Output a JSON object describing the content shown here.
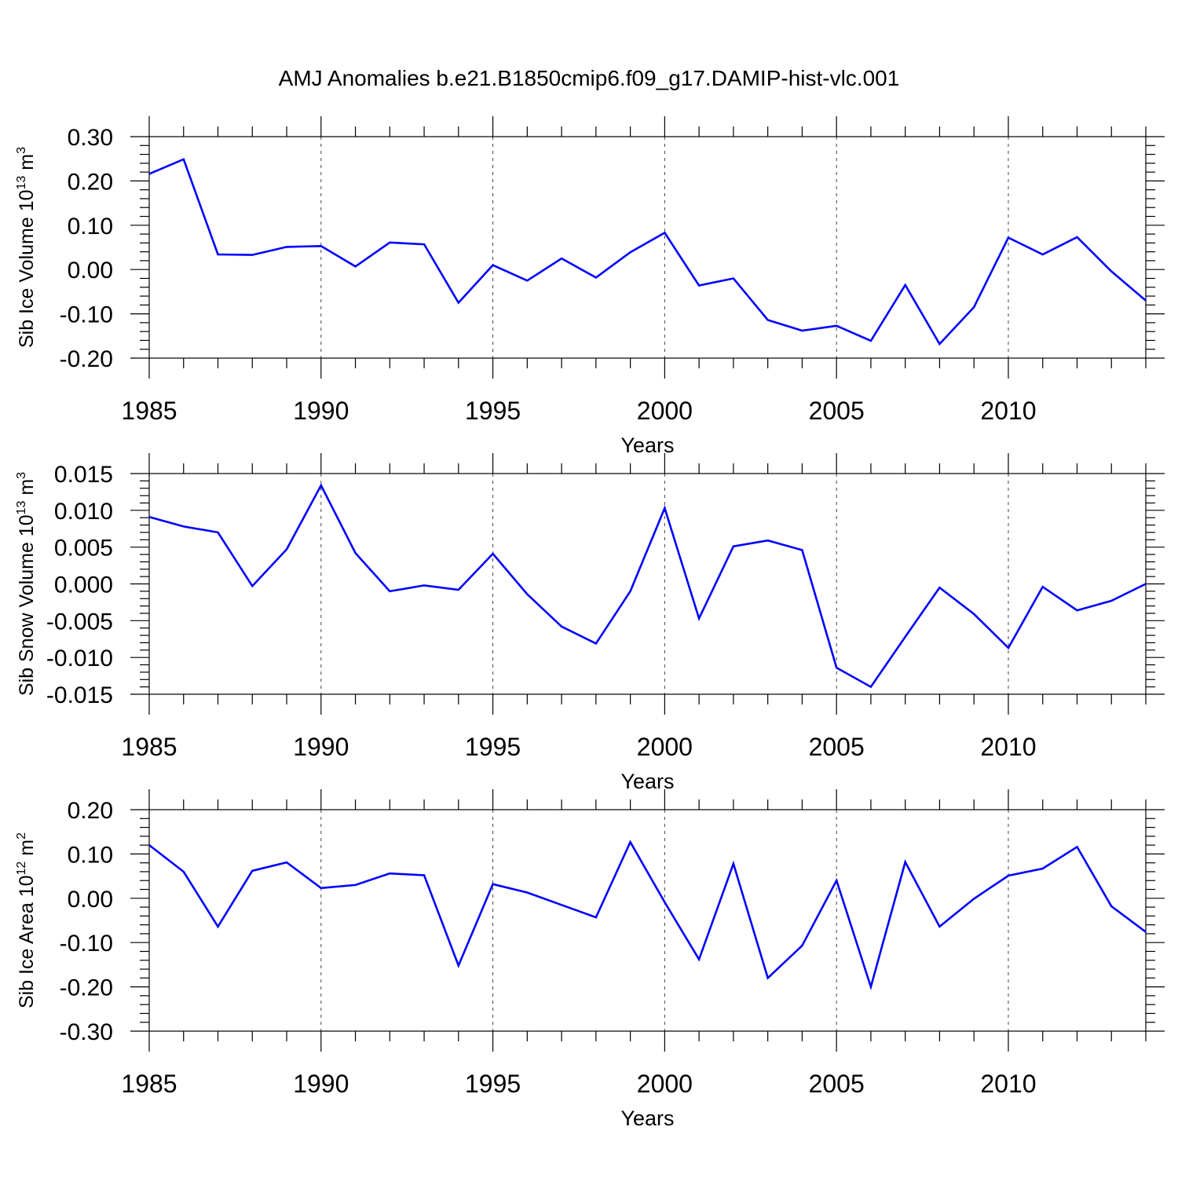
{
  "title": "AMJ Anomalies b.e21.B1850cmip6.f09_g17.DAMIP-hist-vlc.001",
  "colors": {
    "line": "#0000ff",
    "axis": "#000000",
    "grid": "#444444"
  },
  "chart_data": [
    {
      "type": "line",
      "ylabel": "Sib Ice Volume 10",
      "ylabel_exp": "13",
      "ylabel_unit": " m",
      "ylabel_unit_exp": "3",
      "xlabel": "Years",
      "xlim": [
        1985,
        2014
      ],
      "ylim": [
        -0.2,
        0.3
      ],
      "yticks": [
        -0.2,
        -0.1,
        0.0,
        0.1,
        0.2,
        0.3
      ],
      "ytick_labels": [
        "-0.20",
        "-0.10",
        "0.00",
        "0.10",
        "0.20",
        "0.30"
      ],
      "xticks": [
        1985,
        1990,
        1995,
        2000,
        2005,
        2010
      ],
      "xtick_labels": [
        "1985",
        "1990",
        "1995",
        "2000",
        "2005",
        "2010"
      ],
      "grid_x": [
        1990,
        1995,
        2000,
        2005,
        2010
      ],
      "x": [
        1985,
        1986,
        1987,
        1988,
        1989,
        1990,
        1991,
        1992,
        1993,
        1994,
        1995,
        1996,
        1997,
        1998,
        1999,
        2000,
        2001,
        2002,
        2003,
        2004,
        2005,
        2006,
        2007,
        2008,
        2009,
        2010,
        2011,
        2012,
        2013,
        2014
      ],
      "values": [
        0.216,
        0.249,
        0.034,
        0.033,
        0.051,
        0.053,
        0.007,
        0.061,
        0.057,
        -0.075,
        0.01,
        -0.025,
        0.025,
        -0.018,
        0.039,
        0.083,
        -0.036,
        -0.02,
        -0.114,
        -0.138,
        -0.127,
        -0.161,
        -0.035,
        -0.168,
        -0.085,
        0.072,
        0.034,
        0.073,
        -0.004,
        -0.07
      ]
    },
    {
      "type": "line",
      "ylabel": "Sib Snow Volume 10",
      "ylabel_exp": "13",
      "ylabel_unit": " m",
      "ylabel_unit_exp": "3",
      "xlabel": "Years",
      "xlim": [
        1985,
        2014
      ],
      "ylim": [
        -0.015,
        0.015
      ],
      "yticks": [
        -0.015,
        -0.01,
        -0.005,
        0.0,
        0.005,
        0.01,
        0.015
      ],
      "ytick_labels": [
        "-0.015",
        "-0.010",
        "-0.005",
        "0.000",
        "0.005",
        "0.010",
        "0.015"
      ],
      "xticks": [
        1985,
        1990,
        1995,
        2000,
        2005,
        2010
      ],
      "xtick_labels": [
        "1985",
        "1990",
        "1995",
        "2000",
        "2005",
        "2010"
      ],
      "grid_x": [
        1990,
        1995,
        2000,
        2005,
        2010
      ],
      "x": [
        1985,
        1986,
        1987,
        1988,
        1989,
        1990,
        1991,
        1992,
        1993,
        1994,
        1995,
        1996,
        1997,
        1998,
        1999,
        2000,
        2001,
        2002,
        2003,
        2004,
        2005,
        2006,
        2007,
        2008,
        2009,
        2010,
        2011,
        2012,
        2013,
        2014
      ],
      "values": [
        0.0091,
        0.0078,
        0.007,
        -0.0003,
        0.0047,
        0.0134,
        0.0042,
        -0.001,
        -0.0002,
        -0.0008,
        0.0041,
        -0.0014,
        -0.0058,
        -0.0081,
        -0.001,
        0.0103,
        -0.0047,
        0.0051,
        0.0059,
        0.0046,
        -0.0114,
        -0.014,
        -0.0072,
        -0.0005,
        -0.0041,
        -0.0087,
        -0.0004,
        -0.0036,
        -0.0023,
        0.0
      ]
    },
    {
      "type": "line",
      "ylabel": "Sib Ice Area 10",
      "ylabel_exp": "12",
      "ylabel_unit": " m",
      "ylabel_unit_exp": "2",
      "xlabel": "Years",
      "xlim": [
        1985,
        2014
      ],
      "ylim": [
        -0.3,
        0.2
      ],
      "yticks": [
        -0.3,
        -0.2,
        -0.1,
        0.0,
        0.1,
        0.2
      ],
      "ytick_labels": [
        "-0.30",
        "-0.20",
        "-0.10",
        "0.00",
        "0.10",
        "0.20"
      ],
      "xticks": [
        1985,
        1990,
        1995,
        2000,
        2005,
        2010
      ],
      "xtick_labels": [
        "1985",
        "1990",
        "1995",
        "2000",
        "2005",
        "2010"
      ],
      "grid_x": [
        1990,
        1995,
        2000,
        2005,
        2010
      ],
      "x": [
        1985,
        1986,
        1987,
        1988,
        1989,
        1990,
        1991,
        1992,
        1993,
        1994,
        1995,
        1996,
        1997,
        1998,
        1999,
        2000,
        2001,
        2002,
        2003,
        2004,
        2005,
        2006,
        2007,
        2008,
        2009,
        2010,
        2011,
        2012,
        2013,
        2014
      ],
      "values": [
        0.12,
        0.06,
        -0.064,
        0.062,
        0.081,
        0.023,
        0.03,
        0.056,
        0.052,
        -0.152,
        0.032,
        0.013,
        -0.015,
        -0.043,
        0.127,
        -0.009,
        -0.138,
        0.078,
        -0.18,
        -0.107,
        0.04,
        -0.2,
        0.082,
        -0.064,
        -0.001,
        0.051,
        0.067,
        0.116,
        -0.018,
        -0.076
      ]
    }
  ]
}
